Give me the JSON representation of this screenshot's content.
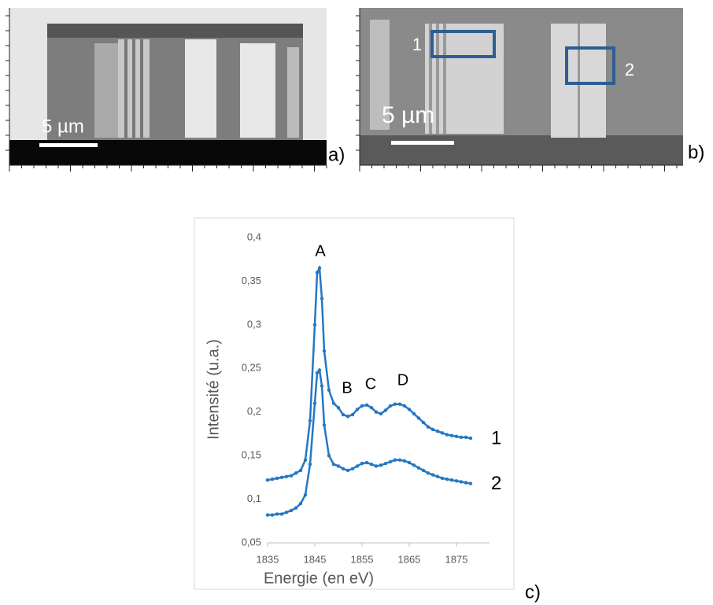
{
  "panels": [
    {
      "label": "a)",
      "scale_bar": "5 µm"
    },
    {
      "label": "b)",
      "scale_bar": "5 µm",
      "regions": [
        "1",
        "2"
      ]
    }
  ],
  "chart_data": {
    "type": "line",
    "panel_label": "c)",
    "x_label": "Energie (en eV)",
    "y_label": "Intensité (u.a.)",
    "annotations": [
      "A",
      "B",
      "C",
      "D"
    ],
    "x": [
      1835,
      1836,
      1837,
      1838,
      1839,
      1840,
      1841,
      1842,
      1843,
      1844,
      1845,
      1845.5,
      1846,
      1846.5,
      1847,
      1848,
      1849,
      1850,
      1851,
      1852,
      1853,
      1854,
      1855,
      1856,
      1857,
      1858,
      1859,
      1860,
      1861,
      1862,
      1863,
      1864,
      1865,
      1866,
      1867,
      1868,
      1869,
      1870,
      1871,
      1872,
      1873,
      1874,
      1875,
      1876,
      1877,
      1878
    ],
    "series": [
      {
        "name": "1",
        "color": "#2378c3",
        "values": [
          0.122,
          0.123,
          0.124,
          0.125,
          0.126,
          0.127,
          0.13,
          0.133,
          0.145,
          0.19,
          0.3,
          0.36,
          0.365,
          0.33,
          0.27,
          0.225,
          0.21,
          0.205,
          0.197,
          0.195,
          0.197,
          0.203,
          0.207,
          0.208,
          0.205,
          0.2,
          0.198,
          0.202,
          0.207,
          0.209,
          0.209,
          0.207,
          0.203,
          0.198,
          0.193,
          0.188,
          0.183,
          0.18,
          0.178,
          0.176,
          0.174,
          0.173,
          0.172,
          0.171,
          0.171,
          0.17
        ]
      },
      {
        "name": "2",
        "color": "#2378c3",
        "values": [
          0.082,
          0.082,
          0.083,
          0.083,
          0.085,
          0.087,
          0.09,
          0.095,
          0.105,
          0.14,
          0.21,
          0.245,
          0.248,
          0.23,
          0.185,
          0.15,
          0.14,
          0.138,
          0.135,
          0.133,
          0.135,
          0.138,
          0.141,
          0.142,
          0.14,
          0.138,
          0.139,
          0.141,
          0.143,
          0.145,
          0.145,
          0.144,
          0.142,
          0.139,
          0.136,
          0.133,
          0.13,
          0.128,
          0.126,
          0.124,
          0.123,
          0.122,
          0.121,
          0.12,
          0.119,
          0.118
        ]
      }
    ],
    "xlim": [
      1835,
      1882
    ],
    "xticks": [
      1835,
      1845,
      1855,
      1865,
      1875
    ],
    "ylim": [
      0.05,
      0.4
    ],
    "yticks": [
      {
        "value": 0.05,
        "label": "0,05"
      },
      {
        "value": 0.1,
        "label": "0,1"
      },
      {
        "value": 0.15,
        "label": "0,15"
      },
      {
        "value": 0.2,
        "label": "0,2"
      },
      {
        "value": 0.25,
        "label": "0,25"
      },
      {
        "value": 0.3,
        "label": "0,3"
      },
      {
        "value": 0.35,
        "label": "0,35"
      },
      {
        "value": 0.4,
        "label": "0,4"
      }
    ],
    "grid": false
  }
}
